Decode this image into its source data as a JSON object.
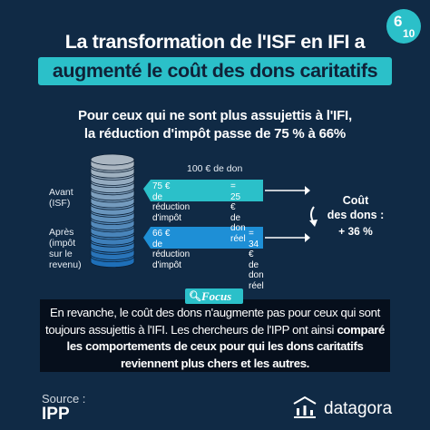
{
  "badge": {
    "top": "6",
    "bottom": "10"
  },
  "title": {
    "line1": "La transformation de l'ISF en IFI a",
    "line2": "augmenté le coût des dons caritatifs"
  },
  "subtitle": {
    "line1": "Pour ceux qui ne sont plus assujettis à l'IFI,",
    "line2": "la réduction d'impôt passe de 75 % à 66%"
  },
  "diagram": {
    "don_label": "100 € de don",
    "avant": {
      "label1": "Avant",
      "label2": "(ISF)"
    },
    "apres": {
      "label1": "Après",
      "label2": "(impôt",
      "label3": "sur le",
      "label4": "revenu)"
    },
    "avant_reduction": {
      "amount": "75 €",
      "text": "de réduction d'impôt"
    },
    "avant_reel": {
      "amount": "= 25 €",
      "text": "de don réel"
    },
    "apres_reduction": {
      "amount": "66 €",
      "text": "de réduction d'impôt"
    },
    "apres_reel": {
      "amount": "= 34 €",
      "text": "de don réel"
    },
    "cout_line1": "Coût",
    "cout_line2": "des dons :",
    "cout_pct": "+ 36 %",
    "colors": {
      "pill_avant": "#2bc0c9",
      "pill_apres": "#1e8fd6",
      "coins_top": "#aab6c1",
      "coins_bottom": "#1e6fb8"
    }
  },
  "focus": {
    "tag": "Focus",
    "icon": "magnifier-icon",
    "text_plain": "En revanche, le coût des dons n'augmente pas pour ceux qui sont toujours assujettis à l'IFI. Les chercheurs de l'IPP ont ainsi ",
    "text_bold": "comparé les comportements de ceux pour qui les dons caritatifs reviennent plus chers et les autres."
  },
  "source": {
    "label": "Source :",
    "value": "IPP"
  },
  "brand": {
    "name": "datagora",
    "icon": "datagora-logo-icon"
  }
}
